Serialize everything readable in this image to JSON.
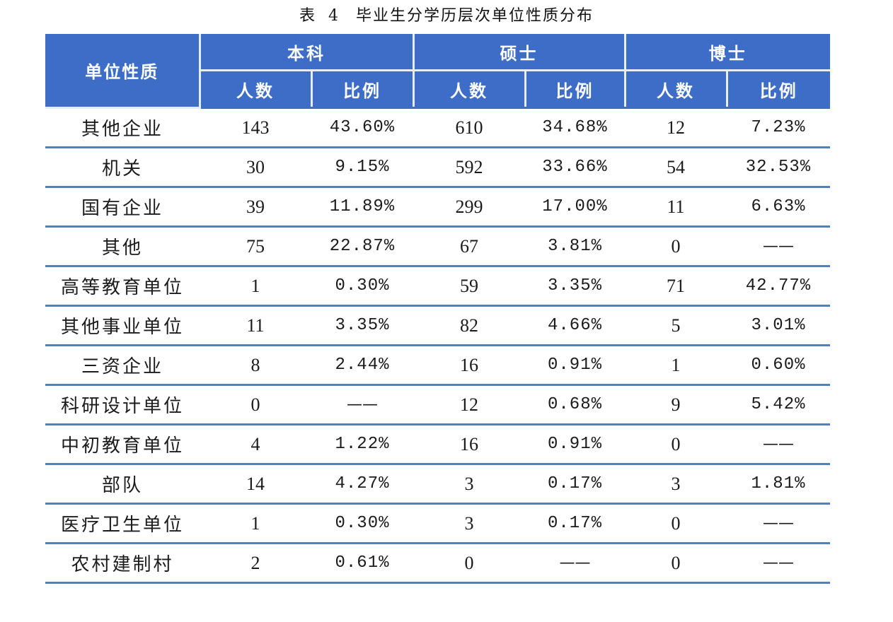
{
  "caption": {
    "label": "表",
    "number": "4",
    "title": "毕业生分学历层次单位性质分布"
  },
  "table": {
    "row_header": "单位性质",
    "groups": [
      {
        "label": "本科",
        "sub": [
          "人数",
          "比例"
        ]
      },
      {
        "label": "硕士",
        "sub": [
          "人数",
          "比例"
        ]
      },
      {
        "label": "博士",
        "sub": [
          "人数",
          "比例"
        ]
      }
    ],
    "rows": [
      {
        "name": "其他企业",
        "cells": [
          "143",
          "43.60%",
          "610",
          "34.68%",
          "12",
          "7.23%"
        ]
      },
      {
        "name": "机关",
        "cells": [
          "30",
          "9.15%",
          "592",
          "33.66%",
          "54",
          "32.53%"
        ]
      },
      {
        "name": "国有企业",
        "cells": [
          "39",
          "11.89%",
          "299",
          "17.00%",
          "11",
          "6.63%"
        ]
      },
      {
        "name": "其他",
        "cells": [
          "75",
          "22.87%",
          "67",
          "3.81%",
          "0",
          "——"
        ]
      },
      {
        "name": "高等教育单位",
        "cells": [
          "1",
          "0.30%",
          "59",
          "3.35%",
          "71",
          "42.77%"
        ]
      },
      {
        "name": "其他事业单位",
        "cells": [
          "11",
          "3.35%",
          "82",
          "4.66%",
          "5",
          "3.01%"
        ]
      },
      {
        "name": "三资企业",
        "cells": [
          "8",
          "2.44%",
          "16",
          "0.91%",
          "1",
          "0.60%"
        ]
      },
      {
        "name": "科研设计单位",
        "cells": [
          "0",
          "——",
          "12",
          "0.68%",
          "9",
          "5.42%"
        ]
      },
      {
        "name": "中初教育单位",
        "cells": [
          "4",
          "1.22%",
          "16",
          "0.91%",
          "0",
          "——"
        ]
      },
      {
        "name": "部队",
        "cells": [
          "14",
          "4.27%",
          "3",
          "0.17%",
          "3",
          "1.81%"
        ]
      },
      {
        "name": "医疗卫生单位",
        "cells": [
          "1",
          "0.30%",
          "3",
          "0.17%",
          "0",
          "——"
        ]
      },
      {
        "name": "农村建制村",
        "cells": [
          "2",
          "0.61%",
          "0",
          "——",
          "0",
          "——"
        ]
      }
    ]
  },
  "colors": {
    "header_bg": "#3d6dc6",
    "header_text": "#ffffff",
    "header_divider": "#e6eefb",
    "row_rule": "#4f80c2"
  }
}
